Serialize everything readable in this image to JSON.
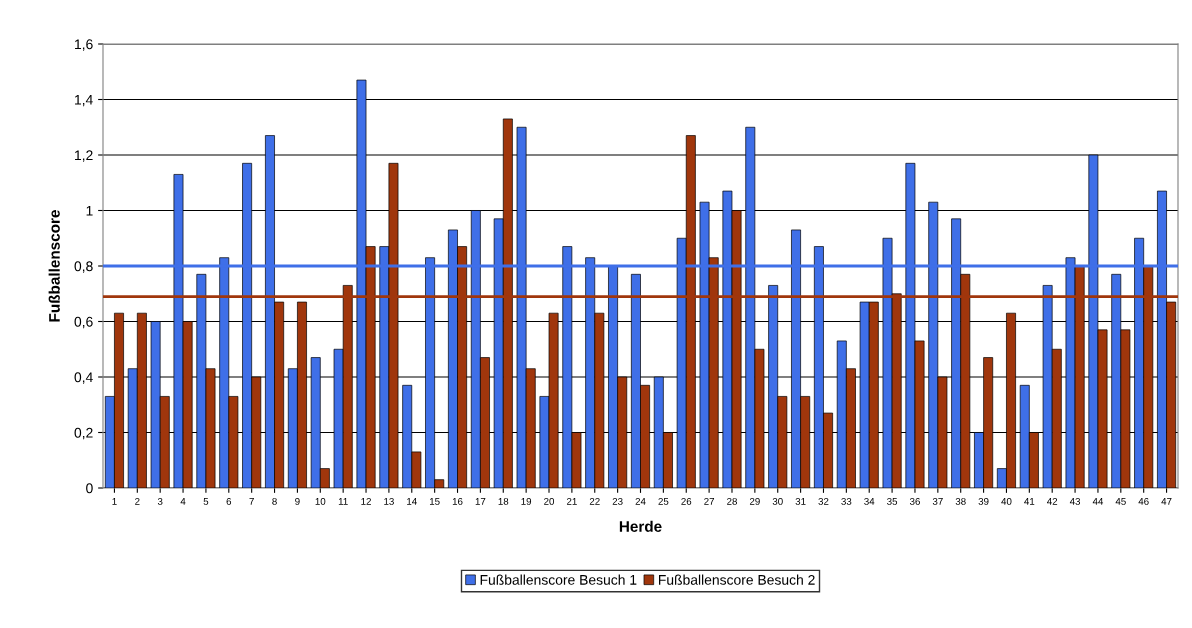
{
  "chart_data": {
    "type": "bar",
    "xlabel": "Herde",
    "ylabel": "Fußballenscore",
    "categories": [
      "1",
      "2",
      "3",
      "4",
      "5",
      "6",
      "7",
      "8",
      "9",
      "10",
      "11",
      "12",
      "13",
      "14",
      "15",
      "16",
      "17",
      "18",
      "19",
      "20",
      "21",
      "22",
      "23",
      "24",
      "25",
      "26",
      "27",
      "28",
      "29",
      "30",
      "31",
      "32",
      "33",
      "34",
      "35",
      "36",
      "37",
      "38",
      "39",
      "40",
      "41",
      "42",
      "43",
      "44",
      "45",
      "46",
      "47"
    ],
    "series": [
      {
        "name": "Fußballenscore Besuch 1",
        "color": "#3f6fe8",
        "values": [
          0.33,
          0.43,
          0.6,
          1.13,
          0.77,
          0.83,
          1.17,
          1.27,
          0.43,
          0.47,
          0.5,
          1.47,
          0.87,
          0.37,
          0.83,
          0.93,
          1.0,
          0.97,
          1.3,
          0.33,
          0.87,
          0.83,
          0.8,
          0.77,
          0.4,
          0.9,
          1.03,
          1.07,
          1.3,
          0.73,
          0.93,
          0.87,
          0.53,
          0.67,
          0.9,
          1.17,
          1.03,
          0.97,
          0.2,
          0.07,
          0.37,
          0.73,
          0.83,
          1.2,
          0.77,
          0.9,
          1.07
        ]
      },
      {
        "name": "Fußballenscore Besuch 2",
        "color": "#a0360c",
        "values": [
          0.63,
          0.63,
          0.33,
          0.6,
          0.43,
          0.33,
          0.4,
          0.67,
          0.67,
          0.07,
          0.73,
          0.87,
          1.17,
          0.13,
          0.03,
          0.87,
          0.47,
          1.33,
          0.43,
          0.63,
          0.2,
          0.63,
          0.4,
          0.37,
          0.2,
          1.27,
          0.83,
          1.0,
          0.5,
          0.33,
          0.33,
          0.27,
          0.43,
          0.67,
          0.7,
          0.53,
          0.4,
          0.77,
          0.47,
          0.63,
          0.2,
          0.5,
          0.8,
          0.57,
          0.57,
          0.8,
          0.67
        ]
      }
    ],
    "ylim": [
      0,
      1.6
    ],
    "yticks": [
      {
        "value": 0,
        "label": "0"
      },
      {
        "value": 0.2,
        "label": "0,2"
      },
      {
        "value": 0.4,
        "label": "0,4"
      },
      {
        "value": 0.6,
        "label": "0,6"
      },
      {
        "value": 0.8,
        "label": "0,8"
      },
      {
        "value": 1,
        "label": "1"
      },
      {
        "value": 1.2,
        "label": "1,2"
      },
      {
        "value": 1.4,
        "label": "1,4"
      },
      {
        "value": 1.6,
        "label": "1,6"
      }
    ],
    "ref_lines": [
      {
        "axis": "y",
        "value": 0.8,
        "color": "#3f6fe8"
      },
      {
        "axis": "y",
        "value": 0.69,
        "color": "#a0360c"
      }
    ],
    "grid": "y",
    "legend": "bottom"
  }
}
